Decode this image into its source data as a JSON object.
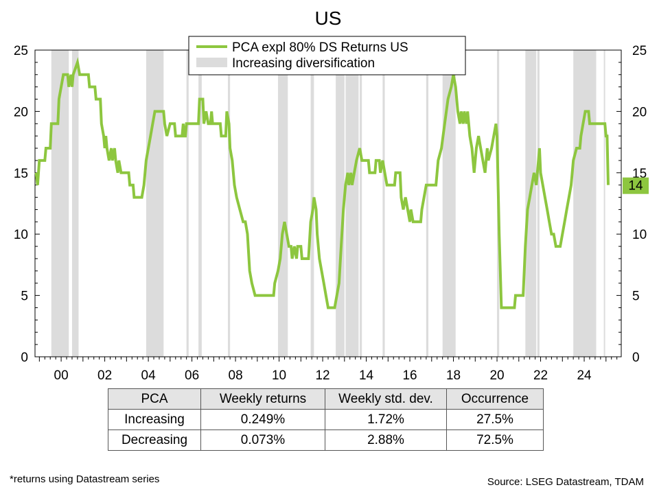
{
  "chart_data": {
    "type": "line",
    "title": "US",
    "xlim": [
      1998.8,
      2025.7
    ],
    "ylim": [
      0,
      25
    ],
    "x_tick_labels": [
      {
        "x": 2000,
        "label": "00"
      },
      {
        "x": 2002,
        "label": "02"
      },
      {
        "x": 2004,
        "label": "04"
      },
      {
        "x": 2006,
        "label": "06"
      },
      {
        "x": 2008,
        "label": "08"
      },
      {
        "x": 2010,
        "label": "10"
      },
      {
        "x": 2012,
        "label": "12"
      },
      {
        "x": 2014,
        "label": "14"
      },
      {
        "x": 2016,
        "label": "16"
      },
      {
        "x": 2018,
        "label": "18"
      },
      {
        "x": 2020,
        "label": "20"
      },
      {
        "x": 2022,
        "label": "22"
      },
      {
        "x": 2024,
        "label": "24"
      }
    ],
    "y_ticks": [
      0,
      5,
      10,
      15,
      20,
      25
    ],
    "y_tick_labels": [
      "0",
      "5",
      "10",
      "15",
      "20",
      "25"
    ],
    "legend_position": "top-center",
    "series": [
      {
        "name": "PCA expl 80% DS Returns US",
        "color": "#8dc63f",
        "last_value_label": "14",
        "points": [
          [
            1998.85,
            15
          ],
          [
            1998.92,
            14
          ],
          [
            1999.0,
            16
          ],
          [
            1999.25,
            16
          ],
          [
            1999.3,
            17
          ],
          [
            1999.5,
            17
          ],
          [
            1999.55,
            19
          ],
          [
            1999.85,
            19
          ],
          [
            1999.9,
            21
          ],
          [
            2000.0,
            22
          ],
          [
            2000.1,
            23
          ],
          [
            2000.3,
            23
          ],
          [
            2000.35,
            22
          ],
          [
            2000.45,
            23
          ],
          [
            2000.5,
            22
          ],
          [
            2000.55,
            23
          ],
          [
            2000.75,
            24
          ],
          [
            2000.85,
            23
          ],
          [
            2001.25,
            23
          ],
          [
            2001.3,
            22
          ],
          [
            2001.55,
            22
          ],
          [
            2001.6,
            21
          ],
          [
            2001.8,
            21
          ],
          [
            2001.85,
            19
          ],
          [
            2001.95,
            18
          ],
          [
            2002.0,
            17
          ],
          [
            2002.05,
            18
          ],
          [
            2002.1,
            17
          ],
          [
            2002.2,
            16
          ],
          [
            2002.3,
            17
          ],
          [
            2002.35,
            16
          ],
          [
            2002.45,
            17
          ],
          [
            2002.5,
            16
          ],
          [
            2002.6,
            15
          ],
          [
            2002.65,
            16
          ],
          [
            2002.75,
            15
          ],
          [
            2003.1,
            15
          ],
          [
            2003.15,
            14
          ],
          [
            2003.3,
            14
          ],
          [
            2003.35,
            13
          ],
          [
            2003.7,
            13
          ],
          [
            2003.8,
            14
          ],
          [
            2003.9,
            16
          ],
          [
            2004.0,
            17
          ],
          [
            2004.1,
            18
          ],
          [
            2004.2,
            19
          ],
          [
            2004.3,
            20
          ],
          [
            2004.7,
            20
          ],
          [
            2004.75,
            19
          ],
          [
            2004.85,
            18
          ],
          [
            2005.0,
            19
          ],
          [
            2005.2,
            19
          ],
          [
            2005.25,
            18
          ],
          [
            2005.55,
            18
          ],
          [
            2005.6,
            19
          ],
          [
            2005.65,
            18
          ],
          [
            2005.7,
            18
          ],
          [
            2005.75,
            19
          ],
          [
            2006.3,
            19
          ],
          [
            2006.35,
            21
          ],
          [
            2006.5,
            21
          ],
          [
            2006.55,
            19
          ],
          [
            2006.65,
            20
          ],
          [
            2006.75,
            19
          ],
          [
            2006.85,
            19
          ],
          [
            2006.9,
            20
          ],
          [
            2006.95,
            19
          ],
          [
            2007.3,
            19
          ],
          [
            2007.35,
            18
          ],
          [
            2007.55,
            18
          ],
          [
            2007.6,
            20
          ],
          [
            2007.7,
            19
          ],
          [
            2007.75,
            17
          ],
          [
            2007.85,
            16
          ],
          [
            2007.95,
            14
          ],
          [
            2008.05,
            13
          ],
          [
            2008.2,
            12
          ],
          [
            2008.35,
            11
          ],
          [
            2008.45,
            11
          ],
          [
            2008.55,
            10
          ],
          [
            2008.65,
            7
          ],
          [
            2008.75,
            6
          ],
          [
            2008.9,
            5
          ],
          [
            2009.75,
            5
          ],
          [
            2009.8,
            6
          ],
          [
            2009.95,
            7
          ],
          [
            2010.05,
            8
          ],
          [
            2010.15,
            10
          ],
          [
            2010.25,
            11
          ],
          [
            2010.35,
            10
          ],
          [
            2010.45,
            9
          ],
          [
            2010.55,
            9
          ],
          [
            2010.6,
            8
          ],
          [
            2010.7,
            9
          ],
          [
            2010.8,
            8
          ],
          [
            2010.85,
            9
          ],
          [
            2011.0,
            9
          ],
          [
            2011.05,
            8
          ],
          [
            2011.35,
            8
          ],
          [
            2011.45,
            11
          ],
          [
            2011.55,
            12
          ],
          [
            2011.6,
            13
          ],
          [
            2011.7,
            12
          ],
          [
            2011.75,
            10
          ],
          [
            2011.85,
            8
          ],
          [
            2011.95,
            7
          ],
          [
            2012.05,
            6
          ],
          [
            2012.15,
            5
          ],
          [
            2012.25,
            4
          ],
          [
            2012.55,
            4
          ],
          [
            2012.65,
            5
          ],
          [
            2012.75,
            6
          ],
          [
            2012.85,
            9
          ],
          [
            2012.95,
            12
          ],
          [
            2013.05,
            14
          ],
          [
            2013.15,
            15
          ],
          [
            2013.2,
            14
          ],
          [
            2013.3,
            15
          ],
          [
            2013.35,
            14
          ],
          [
            2013.45,
            15
          ],
          [
            2013.55,
            16
          ],
          [
            2013.7,
            17
          ],
          [
            2013.8,
            16
          ],
          [
            2014.1,
            16
          ],
          [
            2014.15,
            15
          ],
          [
            2014.4,
            15
          ],
          [
            2014.45,
            16
          ],
          [
            2014.6,
            16
          ],
          [
            2014.65,
            15
          ],
          [
            2014.75,
            16
          ],
          [
            2014.85,
            15
          ],
          [
            2014.95,
            14
          ],
          [
            2015.3,
            14
          ],
          [
            2015.35,
            15
          ],
          [
            2015.55,
            15
          ],
          [
            2015.6,
            13
          ],
          [
            2015.7,
            12
          ],
          [
            2015.8,
            13
          ],
          [
            2015.9,
            12
          ],
          [
            2016.0,
            11
          ],
          [
            2016.05,
            12
          ],
          [
            2016.15,
            11
          ],
          [
            2016.5,
            11
          ],
          [
            2016.55,
            12
          ],
          [
            2016.65,
            13
          ],
          [
            2016.75,
            14
          ],
          [
            2017.2,
            14
          ],
          [
            2017.3,
            16
          ],
          [
            2017.45,
            17
          ],
          [
            2017.6,
            19
          ],
          [
            2017.75,
            21
          ],
          [
            2017.9,
            22
          ],
          [
            2018.0,
            23
          ],
          [
            2018.1,
            22
          ],
          [
            2018.2,
            20
          ],
          [
            2018.3,
            19
          ],
          [
            2018.35,
            20
          ],
          [
            2018.45,
            19
          ],
          [
            2018.5,
            20
          ],
          [
            2018.6,
            19
          ],
          [
            2018.65,
            20
          ],
          [
            2018.75,
            18
          ],
          [
            2018.85,
            17
          ],
          [
            2018.95,
            15
          ],
          [
            2019.05,
            17
          ],
          [
            2019.15,
            18
          ],
          [
            2019.25,
            17
          ],
          [
            2019.35,
            16
          ],
          [
            2019.45,
            15
          ],
          [
            2019.55,
            17
          ],
          [
            2019.6,
            16
          ],
          [
            2019.75,
            17
          ],
          [
            2019.85,
            18
          ],
          [
            2019.95,
            19
          ],
          [
            2020.0,
            18
          ],
          [
            2020.1,
            10
          ],
          [
            2020.2,
            4
          ],
          [
            2020.8,
            4
          ],
          [
            2020.85,
            5
          ],
          [
            2021.2,
            5
          ],
          [
            2021.3,
            9
          ],
          [
            2021.4,
            12
          ],
          [
            2021.5,
            13
          ],
          [
            2021.6,
            14
          ],
          [
            2021.7,
            15
          ],
          [
            2021.8,
            14
          ],
          [
            2021.9,
            16
          ],
          [
            2021.95,
            17
          ],
          [
            2022.0,
            15
          ],
          [
            2022.1,
            14
          ],
          [
            2022.2,
            13
          ],
          [
            2022.3,
            12
          ],
          [
            2022.4,
            11
          ],
          [
            2022.5,
            10
          ],
          [
            2022.6,
            10
          ],
          [
            2022.7,
            9
          ],
          [
            2022.9,
            9
          ],
          [
            2023.0,
            10
          ],
          [
            2023.1,
            11
          ],
          [
            2023.2,
            12
          ],
          [
            2023.3,
            13
          ],
          [
            2023.4,
            14
          ],
          [
            2023.5,
            16
          ],
          [
            2023.65,
            17
          ],
          [
            2023.8,
            17
          ],
          [
            2023.85,
            18
          ],
          [
            2023.95,
            19
          ],
          [
            2024.05,
            20
          ],
          [
            2024.2,
            20
          ],
          [
            2024.25,
            19
          ],
          [
            2024.95,
            19
          ],
          [
            2025.0,
            18
          ],
          [
            2025.05,
            18
          ],
          [
            2025.1,
            14
          ]
        ]
      }
    ],
    "shaded_series": {
      "name": "Increasing diversification",
      "color": "#dcdcdc",
      "periods": [
        [
          1999.55,
          2000.35
        ],
        [
          2000.5,
          2000.8
        ],
        [
          2003.9,
          2004.7
        ],
        [
          2005.75,
          2005.85
        ],
        [
          2006.3,
          2006.45
        ],
        [
          2007.65,
          2007.75
        ],
        [
          2009.95,
          2010.4
        ],
        [
          2011.45,
          2011.6
        ],
        [
          2012.6,
          2013.0
        ],
        [
          2013.05,
          2013.65
        ],
        [
          2013.7,
          2013.8
        ],
        [
          2014.75,
          2014.85
        ],
        [
          2016.75,
          2016.85
        ],
        [
          2017.5,
          2018.1
        ],
        [
          2020.0,
          2020.1
        ],
        [
          2021.3,
          2021.8
        ],
        [
          2021.85,
          2021.95
        ],
        [
          2023.5,
          2024.55
        ],
        [
          2024.9,
          2024.95
        ]
      ]
    }
  },
  "table": {
    "headers": [
      "PCA",
      "Weekly returns",
      "Weekly std. dev.",
      "Occurrence"
    ],
    "rows": [
      [
        "Increasing",
        "0.249%",
        "1.72%",
        "27.5%"
      ],
      [
        "Decreasing",
        "0.073%",
        "2.88%",
        "72.5%"
      ]
    ]
  },
  "footnote_left": "*returns using Datastream series",
  "footnote_right": "Source: LSEG Datastream, TDAM"
}
